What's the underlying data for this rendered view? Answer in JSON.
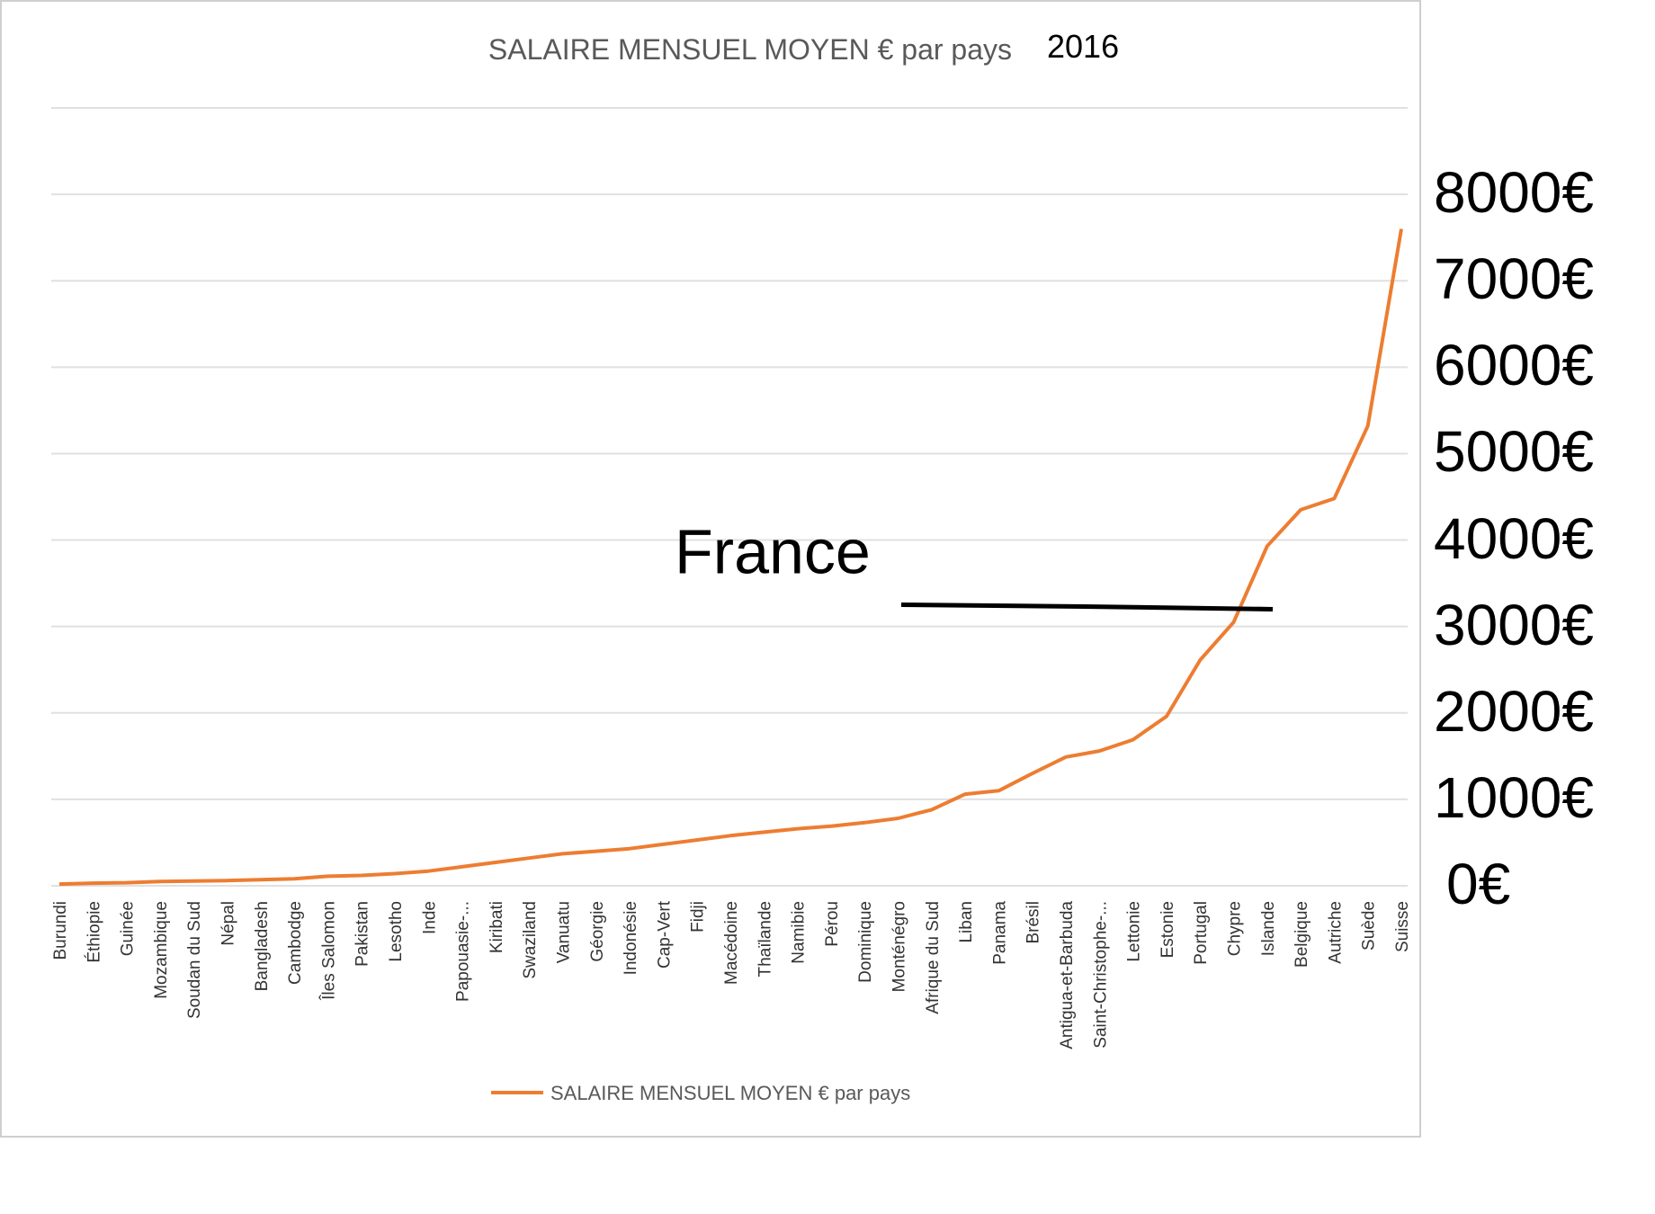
{
  "chart_data": {
    "type": "line",
    "title": "SALAIRE MENSUEL MOYEN € par pays",
    "year_label": "2016",
    "ylim": [
      0,
      9000
    ],
    "y_tick_labels": [
      "0€",
      "1000€",
      "2000€",
      "3000€",
      "4000€",
      "5000€",
      "6000€",
      "7000€",
      "8000€"
    ],
    "legend": {
      "position": "bottom",
      "label": "SALAIRE MENSUEL MOYEN € par pays"
    },
    "grid": true,
    "colors": {
      "line": "#ed7d31",
      "grid": "#e0e0e0",
      "annotation": "#000000"
    },
    "categories": [
      "Burundi",
      "Éthiopie",
      "Guinée",
      "Mozambique",
      "Soudan du Sud",
      "Népal",
      "Bangladesh",
      "Cambodge",
      "Îles Salomon",
      "Pakistan",
      "Lesotho",
      "Inde",
      "Papouasie-...",
      "Kiribati",
      "Swaziland",
      "Vanuatu",
      "Géorgie",
      "Indonésie",
      "Cap-Vert",
      "Fidji",
      "Macédoine",
      "Thaïlande",
      "Namibie",
      "Pérou",
      "Dominique",
      "Monténégro",
      "Afrique du Sud",
      "Liban",
      "Panama",
      "Brésil",
      "Antigua-et-Barbuda",
      "Saint-Christophe-...",
      "Lettonie",
      "Estonie",
      "Portugal",
      "Chypre",
      "Islande",
      "Belgique",
      "Autriche",
      "Suède",
      "Suisse"
    ],
    "series": [
      {
        "name": "SALAIRE MENSUEL MOYEN € par pays",
        "values": [
          20,
          30,
          35,
          50,
          55,
          60,
          70,
          80,
          110,
          120,
          140,
          170,
          220,
          270,
          320,
          370,
          400,
          430,
          480,
          530,
          580,
          620,
          660,
          690,
          730,
          780,
          880,
          1060,
          1100,
          1300,
          1490,
          1560,
          1690,
          1960,
          2610,
          3050,
          3930,
          4350,
          4480,
          5320,
          7600
        ]
      }
    ],
    "annotations": [
      {
        "text": "France",
        "value": 3200
      }
    ]
  }
}
